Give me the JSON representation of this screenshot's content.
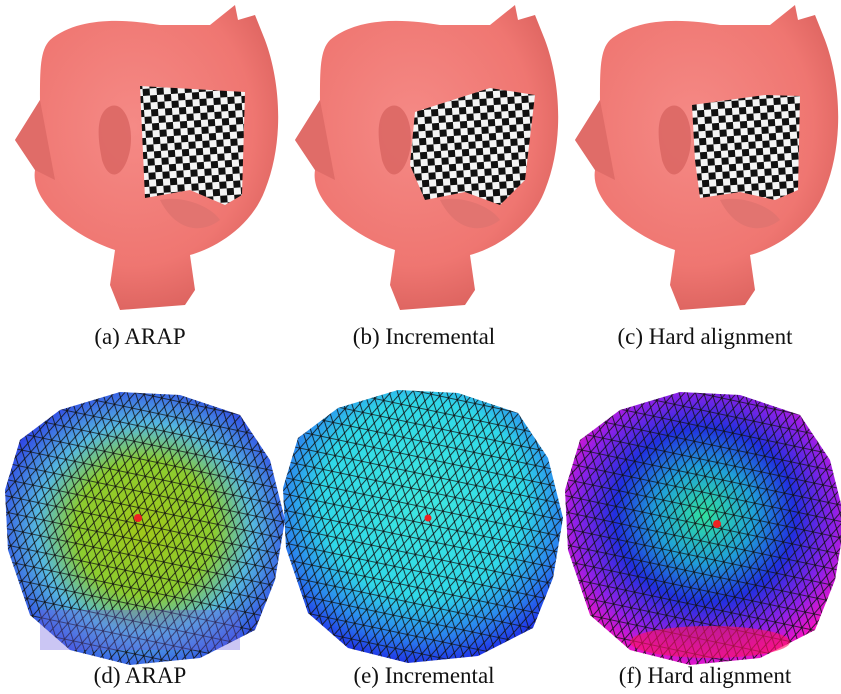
{
  "panels": [
    {
      "caption": "(a) ARAP"
    },
    {
      "caption": "(b) Incremental"
    },
    {
      "caption": "(c) Hard alignment"
    },
    {
      "caption": "(d) ARAP"
    },
    {
      "caption": "(e) Incremental"
    },
    {
      "caption": "(f) Hard alignment"
    }
  ]
}
